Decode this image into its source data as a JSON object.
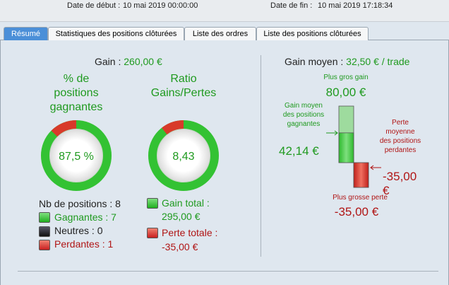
{
  "header": {
    "start_label": "Date de début :",
    "start": "10 mai 2019 00:00:00",
    "end_label": "Date de fin :",
    "end": "10 mai 2019 17:18:34"
  },
  "tabs": [
    "Résumé",
    "Statistiques des positions clôturées",
    "Liste des ordres",
    "Liste des positions clôturées"
  ],
  "gain": {
    "label": "Gain :",
    "value": "260,00 €"
  },
  "win_rate": {
    "title": "% de positions gagnantes",
    "label": "87,5 %",
    "value": 87.5
  },
  "ratio": {
    "title": "Ratio Gains/Pertes",
    "label": "8,43"
  },
  "positions": {
    "total": "Nb de positions : 8",
    "winning": "Gagnantes : 7",
    "neutral": "Neutres : 0",
    "losing": "Perdantes : 1"
  },
  "totals": {
    "gain": {
      "label": "Gain total :",
      "text": "295,00 €",
      "value": 295
    },
    "loss": {
      "label": "Perte totale :",
      "text": "-35,00 €",
      "value": -35
    }
  },
  "average": {
    "label": "Gain moyen :",
    "value": "32,50 € / trade",
    "max_gain": {
      "label": "Plus gros gain",
      "text": "80,00 €",
      "value": 80
    },
    "avg_gain": {
      "label": "Gain moyen des positions gagnantes",
      "text": "42,14 €",
      "value": 42.14
    },
    "avg_loss": {
      "label": "Perte moyenne des positions perdantes",
      "text": "-35,00 €",
      "value": -35
    },
    "max_loss": {
      "label": "Plus grosse perte",
      "text": "-35,00 €",
      "value": -35
    }
  }
}
